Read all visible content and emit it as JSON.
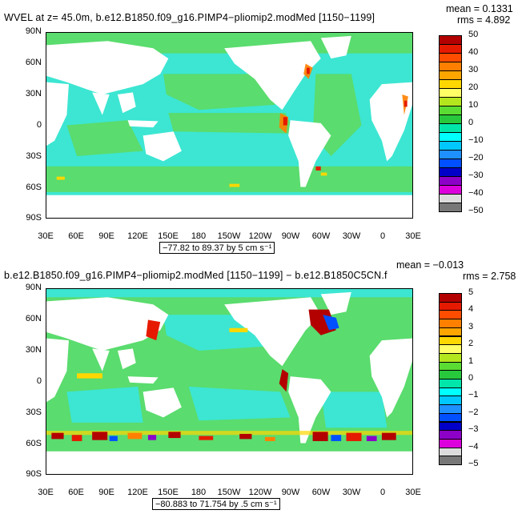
{
  "panels": [
    {
      "title": "WVEL at z=   45.0m, b.e12.B1850.f09_g16.PIMP4−pliomip2.modMed [1150−1199]",
      "mean_text": "mean = 0.1331",
      "rms_text": "rms = 4.892",
      "y_ticks": [
        "90N",
        "60N",
        "30N",
        "0",
        "30S",
        "60S",
        "90S"
      ],
      "x_ticks": [
        "30E",
        "60E",
        "90E",
        "120E",
        "150E",
        "180",
        "150W",
        "120W",
        "90W",
        "60W",
        "30W",
        "0",
        "30E"
      ],
      "range_text": "−77.82 to 89.37 by 5 cm s⁻¹",
      "colorbar_labels": [
        "50",
        "40",
        "30",
        "20",
        "10",
        "0",
        "−10",
        "−20",
        "−30",
        "−40",
        "−50"
      ],
      "colorbar_colors": [
        "#b30000",
        "#e61a00",
        "#ff4d00",
        "#ff8000",
        "#ffa500",
        "#ffd700",
        "#ffff66",
        "#b4e61e",
        "#5adc32",
        "#28c83c",
        "#00e6aa",
        "#00ffff",
        "#00c8ff",
        "#1e90ff",
        "#0050ff",
        "#0000c8",
        "#8c00c8",
        "#dc00dc",
        "#dcdcdc",
        "#787878"
      ]
    },
    {
      "title": "b.e12.B1850.f09_g16.PIMP4−pliomip2.modMed [1150−1199] − b.e12.B1850C5CN.f",
      "mean_text": "mean = −0.013",
      "rms_text": "rms = 2.758",
      "y_ticks": [
        "90N",
        "60N",
        "30N",
        "0",
        "30S",
        "60S",
        "90S"
      ],
      "x_ticks": [
        "30E",
        "60E",
        "90E",
        "120E",
        "150E",
        "180",
        "150W",
        "120W",
        "90W",
        "60W",
        "30W",
        "0",
        "30E"
      ],
      "range_text": "−80.883 to 71.754 by .5 cm s⁻¹",
      "colorbar_labels": [
        "5",
        "4",
        "3",
        "2",
        "1",
        "0",
        "−1",
        "−2",
        "−3",
        "−4",
        "−5"
      ],
      "colorbar_colors": [
        "#b30000",
        "#e61a00",
        "#ff4d00",
        "#ff8000",
        "#ffa500",
        "#ffd700",
        "#ffff66",
        "#b4e61e",
        "#5adc32",
        "#28c83c",
        "#00e6aa",
        "#00ffff",
        "#00c8ff",
        "#1e90ff",
        "#0050ff",
        "#0000c8",
        "#8c00c8",
        "#dc00dc",
        "#dcdcdc",
        "#787878"
      ]
    }
  ],
  "colors": {
    "ocean_main": "#5adc6e",
    "ocean_cyan": "#3ce6d2",
    "land": "#ffffff"
  }
}
